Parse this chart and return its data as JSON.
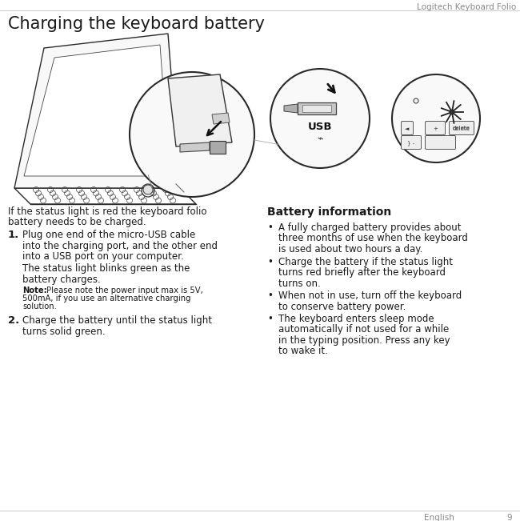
{
  "page_header": "Logitech Keyboard Folio",
  "page_number": "9",
  "page_language": "English",
  "section_title": "Charging the keyboard battery",
  "intro_text_1": "If the status light is red the keyboard folio",
  "intro_text_2": "battery needs to be charged.",
  "steps": [
    {
      "number": "1.",
      "line1": "Plug one end of the micro-USB cable",
      "line2": "into the charging port, and the other end",
      "line3": "into a USB port on your computer.",
      "sub1": "The status light blinks green as the",
      "sub2": "battery charges.",
      "note_label": "Note:",
      "note_text": " Please note the power input max is 5V,",
      "note_text2": "500mA, if you use an alternative charging",
      "note_text3": "solution."
    },
    {
      "number": "2.",
      "line1": "Charge the battery until the status light",
      "line2": "turns solid green."
    }
  ],
  "battery_title": "Battery information",
  "bullet1_1": "A fully charged battery provides about",
  "bullet1_2": "three months of use when the keyboard",
  "bullet1_3": "is used about two hours a day.",
  "bullet2_1": "Charge the battery if the status light",
  "bullet2_2": "turns red briefly after the keyboard",
  "bullet2_3": "turns on.",
  "bullet3_1": "When not in use, turn off the keyboard",
  "bullet3_2": "to conserve battery power.",
  "bullet4_1": "The keyboard enters sleep mode",
  "bullet4_2": "automatically if not used for a while",
  "bullet4_3": "in the typing position. Press any key",
  "bullet4_4": "to wake it.",
  "bg_color": "#ffffff",
  "text_color": "#1a1a1a",
  "header_color": "#888888",
  "line_color": "#cccccc",
  "title_fontsize": 15,
  "body_fontsize": 8.5,
  "note_fontsize": 7.2,
  "header_fontsize": 7.5,
  "step_num_fontsize": 9.5,
  "batt_title_fontsize": 10
}
